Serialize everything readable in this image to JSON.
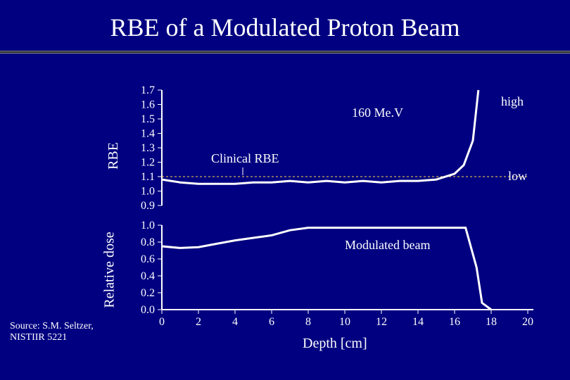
{
  "title": "RBE of a Modulated Proton Beam",
  "source_line1": "Source: S.M. Seltzer,",
  "source_line2": "NISTIIR 5221",
  "colors": {
    "bg": "#000080",
    "line": "#ffffff",
    "text": "#ffffff",
    "dashed": "#ffd94a"
  },
  "xaxis": {
    "label": "Depth [cm]",
    "min": 0,
    "max": 20,
    "ticks": [
      0,
      2,
      4,
      6,
      8,
      10,
      12,
      14,
      16,
      18,
      20
    ]
  },
  "rbe_chart": {
    "ylabel": "RBE",
    "ymin": 0.9,
    "ymax": 1.7,
    "yticks": [
      "1.7",
      "1.6",
      "1.5",
      "1.4",
      "1.3",
      "1.2",
      "1.1",
      "1.0",
      "0.9"
    ],
    "line_width": 3,
    "anno_energy": "160 Me.V",
    "anno_high": "high",
    "anno_low": "low",
    "anno_clinical": "Clinical RBE",
    "clinical_rbe_value": 1.1,
    "series": [
      [
        0,
        1.08
      ],
      [
        1,
        1.06
      ],
      [
        2,
        1.05
      ],
      [
        3,
        1.05
      ],
      [
        4,
        1.05
      ],
      [
        5,
        1.06
      ],
      [
        6,
        1.06
      ],
      [
        7,
        1.07
      ],
      [
        8,
        1.06
      ],
      [
        9,
        1.07
      ],
      [
        10,
        1.06
      ],
      [
        11,
        1.07
      ],
      [
        12,
        1.06
      ],
      [
        13,
        1.07
      ],
      [
        14,
        1.07
      ],
      [
        15,
        1.08
      ],
      [
        16,
        1.12
      ],
      [
        16.5,
        1.18
      ],
      [
        17,
        1.35
      ],
      [
        17.3,
        1.7
      ]
    ]
  },
  "dose_chart": {
    "ylabel": "Relative dose",
    "ymin": 0.0,
    "ymax": 1.0,
    "yticks": [
      "1.0",
      "0.8",
      "0.6",
      "0.4",
      "0.2",
      "0.0"
    ],
    "line_width": 3,
    "anno_beam": "Modulated beam",
    "series": [
      [
        0,
        0.75
      ],
      [
        1,
        0.73
      ],
      [
        2,
        0.74
      ],
      [
        3,
        0.78
      ],
      [
        4,
        0.82
      ],
      [
        5,
        0.85
      ],
      [
        6,
        0.88
      ],
      [
        7,
        0.94
      ],
      [
        8,
        0.97
      ],
      [
        9,
        0.97
      ],
      [
        10,
        0.97
      ],
      [
        11,
        0.97
      ],
      [
        12,
        0.97
      ],
      [
        13,
        0.97
      ],
      [
        14,
        0.97
      ],
      [
        15,
        0.97
      ],
      [
        16,
        0.97
      ],
      [
        16.6,
        0.97
      ],
      [
        17.2,
        0.5
      ],
      [
        17.5,
        0.08
      ],
      [
        18,
        0.0
      ]
    ]
  }
}
